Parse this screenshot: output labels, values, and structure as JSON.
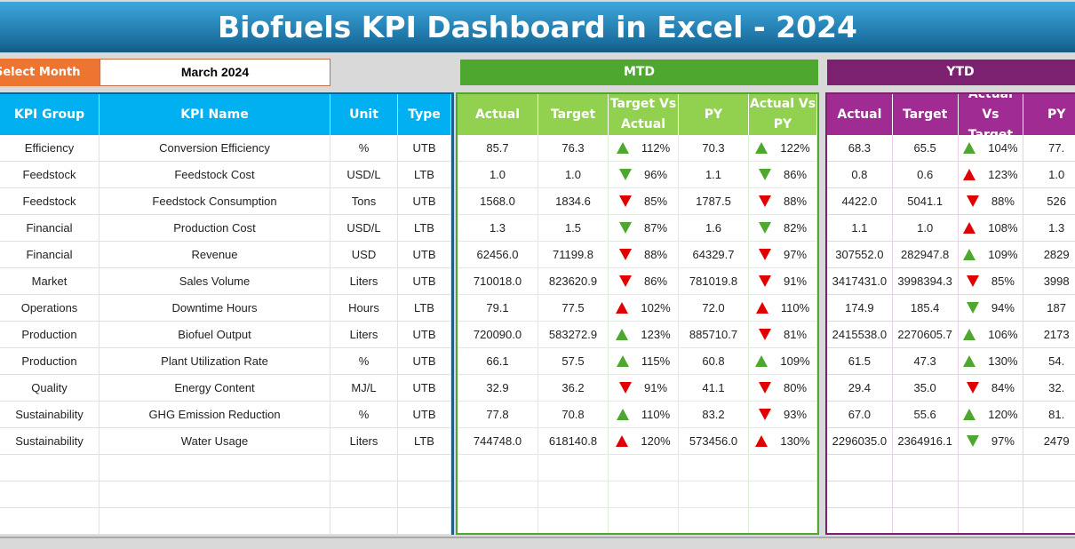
{
  "title": "Biofuels KPI Dashboard in Excel - 2024",
  "select_month": {
    "label": "Select Month",
    "value": "March 2024"
  },
  "colors": {
    "title": "#1f7db3",
    "left_header": "#00b0f0",
    "mtd": "#4ea72e",
    "mtd_header": "#92d050",
    "ytd": "#7b2170",
    "ytd_header": "#a02b93",
    "select": "#ed7431",
    "up_good": "#4ea72e",
    "bad": "#e00000"
  },
  "mtd_label": "MTD",
  "ytd_label": "YTD",
  "left_headers": [
    "KPI Group",
    "KPI Name",
    "Unit",
    "Type"
  ],
  "mtd_headers": [
    "Actual",
    "Target",
    "Target Vs Actual",
    "PY",
    "Actual Vs PY"
  ],
  "ytd_headers": [
    "Actual",
    "Target",
    "Actual Vs Target",
    "PY"
  ],
  "rows": [
    {
      "group": "Efficiency",
      "name": "Conversion Efficiency",
      "unit": "%",
      "type": "UTB",
      "mtd": {
        "actual": "85.7",
        "target": "76.3",
        "tva": {
          "pct": "112%",
          "dir": "up",
          "color": "green"
        },
        "py": "70.3",
        "avpy": {
          "pct": "122%",
          "dir": "up",
          "color": "green"
        }
      },
      "ytd": {
        "actual": "68.3",
        "target": "65.5",
        "avt": {
          "pct": "104%",
          "dir": "up",
          "color": "green"
        },
        "py": "77."
      }
    },
    {
      "group": "Feedstock",
      "name": "Feedstock Cost",
      "unit": "USD/L",
      "type": "LTB",
      "mtd": {
        "actual": "1.0",
        "target": "1.0",
        "tva": {
          "pct": "96%",
          "dir": "down",
          "color": "green"
        },
        "py": "1.1",
        "avpy": {
          "pct": "86%",
          "dir": "down",
          "color": "green"
        }
      },
      "ytd": {
        "actual": "0.8",
        "target": "0.6",
        "avt": {
          "pct": "123%",
          "dir": "up",
          "color": "red"
        },
        "py": "1.0"
      }
    },
    {
      "group": "Feedstock",
      "name": "Feedstock Consumption",
      "unit": "Tons",
      "type": "UTB",
      "mtd": {
        "actual": "1568.0",
        "target": "1834.6",
        "tva": {
          "pct": "85%",
          "dir": "down",
          "color": "red"
        },
        "py": "1787.5",
        "avpy": {
          "pct": "88%",
          "dir": "down",
          "color": "red"
        }
      },
      "ytd": {
        "actual": "4422.0",
        "target": "5041.1",
        "avt": {
          "pct": "88%",
          "dir": "down",
          "color": "red"
        },
        "py": "526"
      }
    },
    {
      "group": "Financial",
      "name": "Production Cost",
      "unit": "USD/L",
      "type": "LTB",
      "mtd": {
        "actual": "1.3",
        "target": "1.5",
        "tva": {
          "pct": "87%",
          "dir": "down",
          "color": "green"
        },
        "py": "1.6",
        "avpy": {
          "pct": "82%",
          "dir": "down",
          "color": "green"
        }
      },
      "ytd": {
        "actual": "1.1",
        "target": "1.0",
        "avt": {
          "pct": "108%",
          "dir": "up",
          "color": "red"
        },
        "py": "1.3"
      }
    },
    {
      "group": "Financial",
      "name": "Revenue",
      "unit": "USD",
      "type": "UTB",
      "mtd": {
        "actual": "62456.0",
        "target": "71199.8",
        "tva": {
          "pct": "88%",
          "dir": "down",
          "color": "red"
        },
        "py": "64329.7",
        "avpy": {
          "pct": "97%",
          "dir": "down",
          "color": "red"
        }
      },
      "ytd": {
        "actual": "307552.0",
        "target": "282947.8",
        "avt": {
          "pct": "109%",
          "dir": "up",
          "color": "green"
        },
        "py": "2829"
      }
    },
    {
      "group": "Market",
      "name": "Sales Volume",
      "unit": "Liters",
      "type": "UTB",
      "mtd": {
        "actual": "710018.0",
        "target": "823620.9",
        "tva": {
          "pct": "86%",
          "dir": "down",
          "color": "red"
        },
        "py": "781019.8",
        "avpy": {
          "pct": "91%",
          "dir": "down",
          "color": "red"
        }
      },
      "ytd": {
        "actual": "3417431.0",
        "target": "3998394.3",
        "avt": {
          "pct": "85%",
          "dir": "down",
          "color": "red"
        },
        "py": "3998"
      }
    },
    {
      "group": "Operations",
      "name": "Downtime Hours",
      "unit": "Hours",
      "type": "LTB",
      "mtd": {
        "actual": "79.1",
        "target": "77.5",
        "tva": {
          "pct": "102%",
          "dir": "up",
          "color": "red"
        },
        "py": "72.0",
        "avpy": {
          "pct": "110%",
          "dir": "up",
          "color": "red"
        }
      },
      "ytd": {
        "actual": "174.9",
        "target": "185.4",
        "avt": {
          "pct": "94%",
          "dir": "down",
          "color": "green"
        },
        "py": "187"
      }
    },
    {
      "group": "Production",
      "name": "Biofuel Output",
      "unit": "Liters",
      "type": "UTB",
      "mtd": {
        "actual": "720090.0",
        "target": "583272.9",
        "tva": {
          "pct": "123%",
          "dir": "up",
          "color": "green"
        },
        "py": "885710.7",
        "avpy": {
          "pct": "81%",
          "dir": "down",
          "color": "red"
        }
      },
      "ytd": {
        "actual": "2415538.0",
        "target": "2270605.7",
        "avt": {
          "pct": "106%",
          "dir": "up",
          "color": "green"
        },
        "py": "2173"
      }
    },
    {
      "group": "Production",
      "name": "Plant Utilization Rate",
      "unit": "%",
      "type": "UTB",
      "mtd": {
        "actual": "66.1",
        "target": "57.5",
        "tva": {
          "pct": "115%",
          "dir": "up",
          "color": "green"
        },
        "py": "60.8",
        "avpy": {
          "pct": "109%",
          "dir": "up",
          "color": "green"
        }
      },
      "ytd": {
        "actual": "61.5",
        "target": "47.3",
        "avt": {
          "pct": "130%",
          "dir": "up",
          "color": "green"
        },
        "py": "54."
      }
    },
    {
      "group": "Quality",
      "name": "Energy Content",
      "unit": "MJ/L",
      "type": "UTB",
      "mtd": {
        "actual": "32.9",
        "target": "36.2",
        "tva": {
          "pct": "91%",
          "dir": "down",
          "color": "red"
        },
        "py": "41.1",
        "avpy": {
          "pct": "80%",
          "dir": "down",
          "color": "red"
        }
      },
      "ytd": {
        "actual": "29.4",
        "target": "35.0",
        "avt": {
          "pct": "84%",
          "dir": "down",
          "color": "red"
        },
        "py": "32."
      }
    },
    {
      "group": "Sustainability",
      "name": "GHG Emission Reduction",
      "unit": "%",
      "type": "UTB",
      "mtd": {
        "actual": "77.8",
        "target": "70.8",
        "tva": {
          "pct": "110%",
          "dir": "up",
          "color": "green"
        },
        "py": "83.2",
        "avpy": {
          "pct": "93%",
          "dir": "down",
          "color": "red"
        }
      },
      "ytd": {
        "actual": "67.0",
        "target": "55.6",
        "avt": {
          "pct": "120%",
          "dir": "up",
          "color": "green"
        },
        "py": "81."
      }
    },
    {
      "group": "Sustainability",
      "name": "Water Usage",
      "unit": "Liters",
      "type": "LTB",
      "mtd": {
        "actual": "744748.0",
        "target": "618140.8",
        "tva": {
          "pct": "120%",
          "dir": "up",
          "color": "red"
        },
        "py": "573456.0",
        "avpy": {
          "pct": "130%",
          "dir": "up",
          "color": "red"
        }
      },
      "ytd": {
        "actual": "2296035.0",
        "target": "2364916.1",
        "avt": {
          "pct": "97%",
          "dir": "down",
          "color": "green"
        },
        "py": "2479"
      }
    }
  ]
}
